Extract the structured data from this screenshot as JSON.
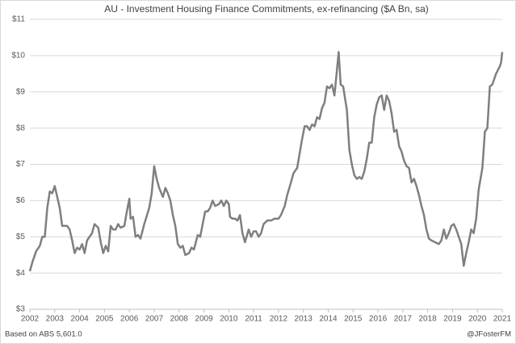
{
  "chart_data": {
    "type": "line",
    "title": "AU - Investment Housing Finance Commitments, ex-refinancing ($A Bn, sa)",
    "source": "Based on ABS 5,601.0",
    "credit": "@JFosterFM",
    "color": "#7f7f7f",
    "grid": true,
    "xlim": [
      2002,
      2021
    ],
    "xticks": [
      2002,
      2003,
      2004,
      2005,
      2006,
      2007,
      2008,
      2009,
      2010,
      2011,
      2012,
      2013,
      2014,
      2015,
      2016,
      2017,
      2018,
      2019,
      2020,
      2021
    ],
    "ylim": [
      3,
      11
    ],
    "yticks": [
      {
        "value": 3,
        "label": "$3"
      },
      {
        "value": 4,
        "label": "$4"
      },
      {
        "value": 5,
        "label": "$5"
      },
      {
        "value": 6,
        "label": "$6"
      },
      {
        "value": 7,
        "label": "$7"
      },
      {
        "value": 8,
        "label": "$8"
      },
      {
        "value": 9,
        "label": "$9"
      },
      {
        "value": 10,
        "label": "$10"
      },
      {
        "value": 11,
        "label": "$11"
      }
    ],
    "x": [
      2002.0,
      2002.1,
      2002.25,
      2002.4,
      2002.5,
      2002.6,
      2002.7,
      2002.8,
      2002.9,
      2003.0,
      2003.1,
      2003.2,
      2003.3,
      2003.5,
      2003.6,
      2003.7,
      2003.8,
      2003.9,
      2004.0,
      2004.1,
      2004.2,
      2004.3,
      2004.5,
      2004.6,
      2004.75,
      2004.85,
      2004.95,
      2005.05,
      2005.15,
      2005.25,
      2005.35,
      2005.45,
      2005.55,
      2005.65,
      2005.8,
      2005.9,
      2006.0,
      2006.05,
      2006.15,
      2006.25,
      2006.35,
      2006.45,
      2006.6,
      2006.8,
      2006.9,
      2007.0,
      2007.1,
      2007.2,
      2007.35,
      2007.45,
      2007.55,
      2007.65,
      2007.75,
      2007.85,
      2007.95,
      2008.05,
      2008.15,
      2008.25,
      2008.4,
      2008.5,
      2008.6,
      2008.75,
      2008.85,
      2008.95,
      2009.05,
      2009.15,
      2009.25,
      2009.35,
      2009.45,
      2009.6,
      2009.7,
      2009.8,
      2009.9,
      2010.0,
      2010.05,
      2010.15,
      2010.25,
      2010.35,
      2010.45,
      2010.55,
      2010.65,
      2010.8,
      2010.9,
      2011.0,
      2011.1,
      2011.2,
      2011.3,
      2011.4,
      2011.55,
      2011.7,
      2011.85,
      2012.0,
      2012.1,
      2012.25,
      2012.35,
      2012.5,
      2012.6,
      2012.75,
      2012.85,
      2012.95,
      2013.05,
      2013.15,
      2013.25,
      2013.35,
      2013.45,
      2013.55,
      2013.65,
      2013.75,
      2013.85,
      2013.95,
      2014.05,
      2014.15,
      2014.25,
      2014.35,
      2014.42,
      2014.5,
      2014.6,
      2014.75,
      2014.85,
      2014.95,
      2015.05,
      2015.15,
      2015.25,
      2015.35,
      2015.45,
      2015.55,
      2015.65,
      2015.75,
      2015.85,
      2015.95,
      2016.05,
      2016.15,
      2016.25,
      2016.35,
      2016.45,
      2016.55,
      2016.65,
      2016.75,
      2016.85,
      2016.95,
      2017.05,
      2017.15,
      2017.25,
      2017.35,
      2017.45,
      2017.55,
      2017.65,
      2017.75,
      2017.85,
      2017.95,
      2018.05,
      2018.15,
      2018.3,
      2018.45,
      2018.55,
      2018.65,
      2018.75,
      2018.85,
      2018.95,
      2019.05,
      2019.15,
      2019.25,
      2019.35,
      2019.45,
      2019.55,
      2019.65,
      2019.75,
      2019.85,
      2019.95,
      2020.05,
      2020.2,
      2020.3,
      2020.4,
      2020.5,
      2020.6,
      2020.75,
      2020.9,
      2020.95,
      2021.0
    ],
    "values": [
      4.05,
      4.3,
      4.6,
      4.75,
      5.0,
      5.0,
      5.8,
      6.25,
      6.2,
      6.4,
      6.1,
      5.8,
      5.3,
      5.3,
      5.2,
      4.9,
      4.55,
      4.7,
      4.65,
      4.8,
      4.55,
      4.9,
      5.1,
      5.35,
      5.25,
      4.85,
      4.55,
      4.75,
      4.6,
      5.3,
      5.2,
      5.2,
      5.35,
      5.25,
      5.3,
      5.7,
      6.05,
      5.5,
      5.55,
      5.0,
      5.05,
      4.95,
      5.35,
      5.8,
      6.2,
      6.95,
      6.6,
      6.35,
      6.1,
      6.35,
      6.2,
      6.0,
      5.6,
      5.3,
      4.8,
      4.7,
      4.75,
      4.5,
      4.55,
      4.7,
      4.65,
      5.05,
      5.0,
      5.35,
      5.7,
      5.7,
      5.8,
      6.0,
      5.85,
      5.9,
      6.0,
      5.85,
      6.0,
      5.9,
      5.55,
      5.5,
      5.5,
      5.45,
      5.6,
      5.1,
      4.85,
      5.2,
      5.0,
      5.15,
      5.15,
      5.0,
      5.1,
      5.35,
      5.45,
      5.45,
      5.5,
      5.5,
      5.6,
      5.85,
      6.15,
      6.5,
      6.75,
      6.9,
      7.3,
      7.7,
      8.05,
      8.05,
      7.95,
      8.1,
      8.05,
      8.3,
      8.25,
      8.55,
      8.7,
      9.15,
      9.1,
      9.2,
      8.9,
      9.6,
      10.1,
      9.2,
      9.15,
      8.5,
      7.4,
      7.0,
      6.7,
      6.6,
      6.65,
      6.6,
      6.8,
      7.15,
      7.6,
      7.6,
      8.3,
      8.65,
      8.85,
      8.9,
      8.5,
      8.9,
      8.75,
      8.4,
      7.9,
      7.95,
      7.5,
      7.35,
      7.1,
      6.95,
      6.9,
      6.5,
      6.6,
      6.4,
      6.15,
      5.85,
      5.6,
      5.2,
      4.95,
      4.9,
      4.85,
      4.8,
      4.9,
      5.2,
      4.95,
      5.1,
      5.3,
      5.35,
      5.2,
      5.0,
      4.8,
      4.2,
      4.55,
      4.85,
      5.2,
      5.1,
      5.5,
      6.3,
      6.9,
      7.9,
      8.0,
      9.15,
      9.2,
      9.5,
      9.7,
      9.8,
      10.1
    ]
  }
}
